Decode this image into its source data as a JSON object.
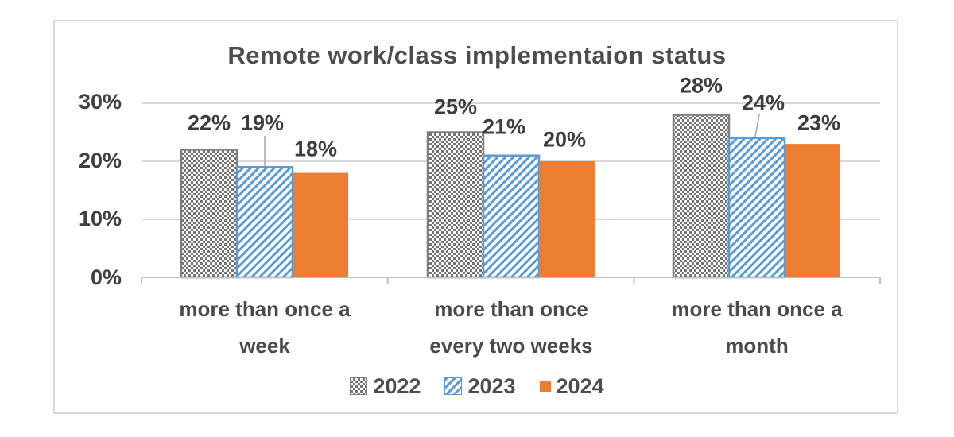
{
  "chart_data": {
    "type": "bar",
    "title": "Remote work/class implementaion status",
    "categories": [
      "more than once a week",
      "more than once every two weeks",
      "more than once a month"
    ],
    "category_lines": [
      [
        "more than once a",
        "week"
      ],
      [
        "more than once",
        "every two weeks"
      ],
      [
        "more than once a",
        "month"
      ]
    ],
    "series": [
      {
        "name": "2022",
        "pattern": "gray-checker",
        "values": [
          22,
          25,
          28
        ],
        "labels": [
          "22%",
          "25%",
          "28%"
        ]
      },
      {
        "name": "2023",
        "pattern": "blue-diagonal-stripes",
        "values": [
          19,
          21,
          24
        ],
        "labels": [
          "19%",
          "21%",
          "24%"
        ]
      },
      {
        "name": "2024",
        "pattern": "orange-solid",
        "values": [
          18,
          20,
          23
        ],
        "labels": [
          "18%",
          "20%",
          "23%"
        ]
      }
    ],
    "y_ticks": [
      "0%",
      "10%",
      "20%",
      "30%"
    ],
    "ylim": [
      0,
      30
    ],
    "grid": true,
    "legend_position": "bottom",
    "colors": {
      "gray": "#757575",
      "gray_border": "#7f7f7f",
      "blue": "#5B9BD5",
      "orange": "#ED7D31",
      "gridline": "#D9D9D9",
      "axis": "#BFBFBF",
      "leader": "#A6A6A6",
      "text": "#404040"
    }
  }
}
